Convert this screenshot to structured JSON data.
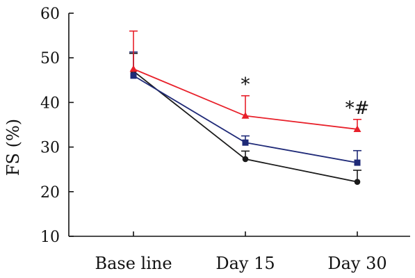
{
  "chart_data": {
    "type": "line",
    "title": "",
    "xlabel": "",
    "ylabel": "FS (%)",
    "ylim": [
      10,
      60
    ],
    "yticks": [
      10,
      20,
      30,
      40,
      50,
      60
    ],
    "categories": [
      "Base line",
      "Day 15",
      "Day 30"
    ],
    "grid": false,
    "series": [
      {
        "color": "#e8202a",
        "marker": "triangle",
        "values": [
          47.5,
          37.0,
          34.0
        ],
        "error_upper": [
          8.5,
          4.5,
          2.2
        ]
      },
      {
        "color": "#1f2a78",
        "marker": "square",
        "values": [
          46.0,
          31.0,
          26.5
        ],
        "error_upper": [
          5.3,
          1.5,
          2.7
        ]
      },
      {
        "color": "#1a1a1a",
        "marker": "circle",
        "values": [
          47.0,
          27.3,
          22.2
        ],
        "error_upper": [
          4.0,
          1.8,
          2.6
        ]
      }
    ],
    "annotations": [
      {
        "text": "*",
        "category": "Day 15"
      },
      {
        "text": "*#",
        "category": "Day 30"
      }
    ]
  }
}
